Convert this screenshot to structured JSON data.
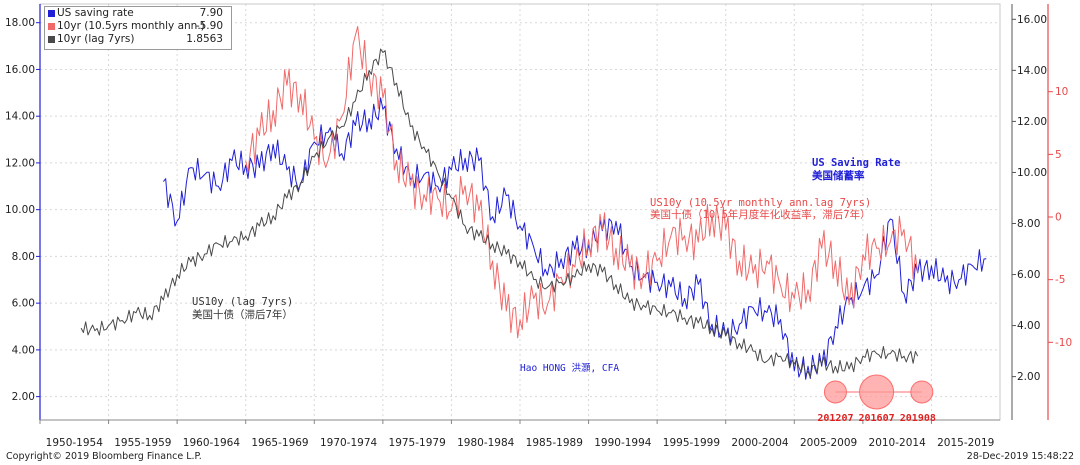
{
  "chart_data": {
    "type": "line",
    "legend": {
      "placement": "top-left",
      "entries": [
        {
          "name": "US saving rate",
          "value": "7.90",
          "color": "#1f1fd6"
        },
        {
          "name": "10yr (10.5yrs monthly ann.)",
          "value": "-5.90",
          "color": "#f06a6a"
        },
        {
          "name": "10yr (lag 7yrs)",
          "value": "1.8563",
          "color": "#4a4a4a"
        }
      ]
    },
    "x_tick_labels": [
      "1950-1954",
      "1955-1959",
      "1960-1964",
      "1965-1969",
      "1970-1974",
      "1975-1979",
      "1980-1984",
      "1985-1989",
      "1990-1994",
      "1995-1999",
      "2000-2004",
      "2005-2009",
      "2010-2014",
      "2015-2019"
    ],
    "xlim": [
      1950,
      2020
    ],
    "y_left": {
      "ticks": [
        "2.00",
        "4.00",
        "6.00",
        "8.00",
        "10.00",
        "12.00",
        "14.00",
        "16.00",
        "18.00"
      ],
      "lim": [
        1,
        18.8
      ]
    },
    "y_right_black": {
      "ticks": [
        "2.00",
        "4.00",
        "6.00",
        "8.00",
        "10.00",
        "12.00",
        "14.00",
        "16.00"
      ],
      "lim": [
        0.3,
        16.6
      ]
    },
    "y_right_red": {
      "ticks": [
        "-10",
        "-5",
        "0",
        "5",
        "10"
      ],
      "lim": [
        -16.2,
        17
      ]
    },
    "series": [
      {
        "name": "US saving rate",
        "color": "#1f1fd6",
        "axis": "left",
        "x": [
          1959,
          1960,
          1961,
          1962,
          1963,
          1964,
          1965,
          1966,
          1967,
          1968,
          1969,
          1970,
          1971,
          1972,
          1973,
          1974,
          1975,
          1976,
          1977,
          1978,
          1979,
          1980,
          1981,
          1982,
          1983,
          1984,
          1985,
          1986,
          1987,
          1988,
          1989,
          1990,
          1991,
          1992,
          1993,
          1994,
          1995,
          1996,
          1997,
          1998,
          1999,
          2000,
          2001,
          2002,
          2003,
          2004,
          2005,
          2006,
          2007,
          2008,
          2009,
          2010,
          2011,
          2012,
          2013,
          2014,
          2015,
          2016,
          2017,
          2018,
          2019
        ],
        "values": [
          11.2,
          9.5,
          11.8,
          11.5,
          11.0,
          12.1,
          11.9,
          11.8,
          12.8,
          11.7,
          11.1,
          12.9,
          13.3,
          12.4,
          13.6,
          13.9,
          14.3,
          12.6,
          11.3,
          11.5,
          11.0,
          11.7,
          12.2,
          12.1,
          9.7,
          10.6,
          9.3,
          8.4,
          7.2,
          7.9,
          8.3,
          8.5,
          9.1,
          9.5,
          7.6,
          7.1,
          6.9,
          6.7,
          6.2,
          6.8,
          5.1,
          4.6,
          5.1,
          5.8,
          5.6,
          5.3,
          3.1,
          3.3,
          3.3,
          5.0,
          6.1,
          6.6,
          7.2,
          9.6,
          6.4,
          7.3,
          7.6,
          6.9,
          7.0,
          7.6,
          7.9
        ]
      },
      {
        "name": "10yr (10.5yrs monthly ann.)",
        "color": "#f06a6a",
        "axis": "right_red",
        "x": [
          1965,
          1966,
          1967,
          1968,
          1969,
          1970,
          1971,
          1972,
          1973,
          1974,
          1975,
          1976,
          1977,
          1978,
          1979,
          1980,
          1981,
          1982,
          1983,
          1984,
          1985,
          1986,
          1987,
          1988,
          1989,
          1990,
          1991,
          1992,
          1993,
          1994,
          1995,
          1996,
          1997,
          1998,
          1999,
          2000,
          2001,
          2002,
          2003,
          2004,
          2005,
          2006,
          2007,
          2008,
          2009,
          2010,
          2011,
          2012,
          2013,
          2014
        ],
        "values": [
          4.5,
          6.5,
          8.5,
          10.5,
          9.8,
          6.2,
          4.5,
          8.0,
          14.5,
          11.5,
          9.5,
          4.5,
          2.5,
          1.8,
          1.5,
          0.5,
          2.5,
          0.5,
          -3.5,
          -7.5,
          -8.2,
          -6.5,
          -7.0,
          -4.8,
          -4.0,
          -1.8,
          -1.0,
          -2.5,
          -4.0,
          -4.5,
          -3.5,
          -1.5,
          -1.5,
          -2.0,
          0.2,
          -1.0,
          -3.5,
          -4.5,
          -3.5,
          -5.5,
          -6.5,
          -5.8,
          -2.5,
          -3.5,
          -7.0,
          -3.0,
          -2.5,
          -2.0,
          -1.0,
          -4.5
        ]
      },
      {
        "name": "10yr (lag 7yrs)",
        "color": "#4a4a4a",
        "axis": "right_black",
        "x": [
          1953,
          1954,
          1955,
          1956,
          1957,
          1958,
          1959,
          1960,
          1961,
          1962,
          1963,
          1964,
          1965,
          1966,
          1967,
          1968,
          1969,
          1970,
          1971,
          1972,
          1973,
          1974,
          1975,
          1976,
          1977,
          1978,
          1979,
          1980,
          1981,
          1982,
          1983,
          1984,
          1985,
          1986,
          1987,
          1988,
          1989,
          1990,
          1991,
          1992,
          1993,
          1994,
          1995,
          1996,
          1997,
          1998,
          1999,
          2000,
          2001,
          2002,
          2003,
          2004,
          2005,
          2006,
          2007,
          2008,
          2009,
          2010,
          2011,
          2012,
          2013,
          2014
        ],
        "values": [
          3.9,
          3.8,
          4.0,
          4.2,
          4.5,
          4.4,
          5.0,
          6.0,
          6.5,
          6.8,
          7.2,
          7.3,
          7.5,
          7.9,
          8.3,
          9.0,
          9.6,
          10.6,
          11.3,
          11.8,
          12.8,
          14.0,
          14.7,
          13.5,
          11.8,
          11.0,
          10.0,
          9.0,
          7.9,
          7.5,
          7.2,
          6.8,
          6.5,
          5.8,
          5.5,
          5.7,
          5.9,
          6.4,
          6.1,
          5.6,
          4.9,
          4.8,
          4.6,
          4.5,
          4.3,
          4.1,
          3.9,
          3.6,
          3.3,
          3.0,
          2.6,
          2.8,
          2.5,
          2.2,
          2.5,
          2.4,
          2.3,
          2.8,
          2.9,
          2.9,
          2.8,
          2.8
        ]
      }
    ],
    "annotations": [
      {
        "text": "US Saving Rate",
        "color": "#1f1fd6"
      },
      {
        "text": "美国储蓄率",
        "color": "#1f1fd6"
      },
      {
        "text": "US10y (10.5yr monthly ann.lag 7yrs)",
        "color": "#e84a4a"
      },
      {
        "text": "美国十债（10.5年月度年化收益率，滞后7年）",
        "color": "#e84a4a"
      },
      {
        "text": "US10y (lag 7yrs)",
        "color": "#333333"
      },
      {
        "text": "美国十债（滞后7年）",
        "color": "#333333"
      },
      {
        "text": "Hao HONG 洪灝, CFA",
        "color": "#1f1fd6"
      },
      {
        "text": "201207",
        "color": "#e02020"
      },
      {
        "text": "201607",
        "color": "#e02020"
      },
      {
        "text": "201908",
        "color": "#e02020"
      }
    ],
    "highlight_circles": [
      {
        "x": 2008.0,
        "label": "201207"
      },
      {
        "x": 2011.0,
        "label": "201607"
      },
      {
        "x": 2014.3,
        "label": "201908"
      }
    ]
  },
  "footer": {
    "copyright": "Copyright© 2019 Bloomberg Finance L.P.",
    "timestamp": "28-Dec-2019 15:48:22"
  }
}
